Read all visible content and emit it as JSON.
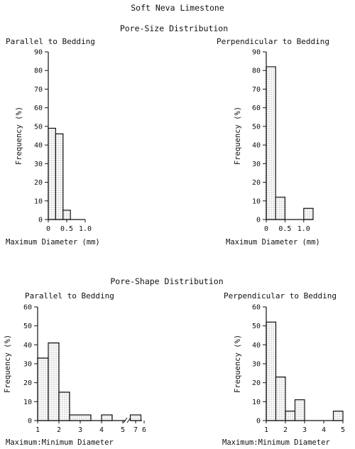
{
  "figure_title": "Soft Neva Limestone",
  "section_titles": [
    "Pore-Size Distribution",
    "Pore-Shape Distribution"
  ],
  "colors": {
    "bar_fill": "#d9d9d9",
    "ink": "#111111"
  },
  "chart_data": [
    {
      "type": "bar",
      "section": "Pore-Size Distribution",
      "title": "Parallel to Bedding",
      "xlabel": "Maximum Diameter (mm)",
      "ylabel": "Frequency (%)",
      "ylim": [
        0,
        90
      ],
      "yticks": [
        0,
        10,
        20,
        30,
        40,
        50,
        60,
        70,
        80,
        90
      ],
      "xlim": [
        0,
        1.0
      ],
      "xticks": [
        "0",
        "0.5",
        "1.0"
      ],
      "bins": [
        {
          "x0": 0.0,
          "x1": 0.2,
          "value": 49
        },
        {
          "x0": 0.2,
          "x1": 0.4,
          "value": 46
        },
        {
          "x0": 0.4,
          "x1": 0.6,
          "value": 5
        }
      ]
    },
    {
      "type": "bar",
      "section": "Pore-Size Distribution",
      "title": "Perpendicular to Bedding",
      "xlabel": "Maximum Diameter (mm)",
      "ylabel": "Frequency (%)",
      "ylim": [
        0,
        90
      ],
      "yticks": [
        0,
        10,
        20,
        30,
        40,
        50,
        60,
        70,
        80,
        90
      ],
      "xlim": [
        0,
        1.25
      ],
      "xticks": [
        "0",
        "0.5",
        "1.0"
      ],
      "bins": [
        {
          "x0": 0.0,
          "x1": 0.25,
          "value": 82
        },
        {
          "x0": 0.25,
          "x1": 0.5,
          "value": 12
        },
        {
          "x0": 1.0,
          "x1": 1.25,
          "value": 6
        }
      ]
    },
    {
      "type": "bar",
      "section": "Pore-Shape Distribution",
      "title": "Parallel to Bedding",
      "xlabel": "Maximum:Minimum Diameter",
      "ylabel": "Frequency (%)",
      "ylim": [
        0,
        60
      ],
      "yticks": [
        0,
        10,
        20,
        30,
        40,
        50,
        60
      ],
      "xlim": [
        1,
        7.25
      ],
      "xticks": [
        "1",
        "2",
        "3",
        "4",
        "5",
        "6",
        "7"
      ],
      "axis_break": "between 6 and 7",
      "bins": [
        {
          "x0": 1.0,
          "x1": 1.5,
          "value": 33
        },
        {
          "x0": 1.5,
          "x1": 2.0,
          "value": 41
        },
        {
          "x0": 2.0,
          "x1": 2.5,
          "value": 15
        },
        {
          "x0": 2.5,
          "x1": 3.5,
          "value": 3
        },
        {
          "x0": 4.0,
          "x1": 4.5,
          "value": 3
        },
        {
          "x0": 6.75,
          "x1": 7.25,
          "value": 3
        }
      ]
    },
    {
      "type": "bar",
      "section": "Pore-Shape Distribution",
      "title": "Perpendicular to Bedding",
      "xlabel": "Maximum:Minimum Diameter",
      "ylabel": "Frequency (%)",
      "ylim": [
        0,
        60
      ],
      "yticks": [
        0,
        10,
        20,
        30,
        40,
        50,
        60
      ],
      "xlim": [
        1,
        5
      ],
      "xticks": [
        "1",
        "2",
        "3",
        "4",
        "5"
      ],
      "bins": [
        {
          "x0": 1.0,
          "x1": 1.5,
          "value": 52
        },
        {
          "x0": 1.5,
          "x1": 2.0,
          "value": 23
        },
        {
          "x0": 2.0,
          "x1": 2.5,
          "value": 5
        },
        {
          "x0": 2.5,
          "x1": 3.0,
          "value": 11
        },
        {
          "x0": 3.0,
          "x1": 4.5,
          "value": 0
        },
        {
          "x0": 4.5,
          "x1": 5.0,
          "value": 5
        }
      ]
    }
  ]
}
